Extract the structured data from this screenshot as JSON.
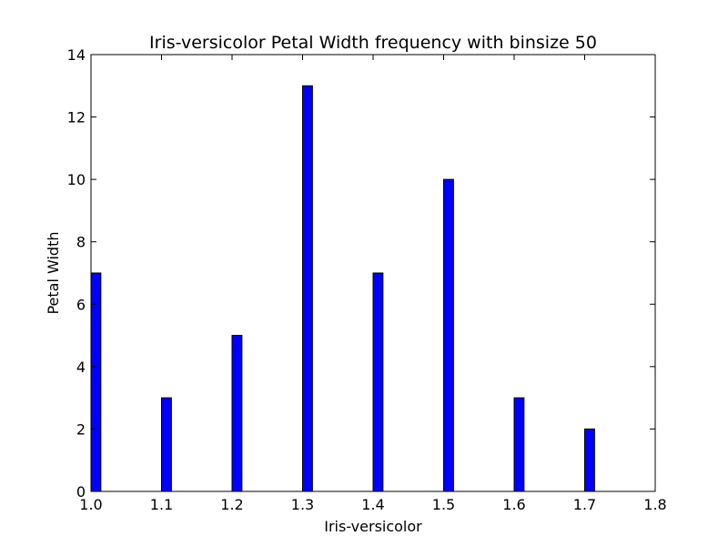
{
  "chart_data": {
    "type": "bar",
    "title": "Iris-versicolor Petal Width frequency with binsize 50",
    "xlabel": "Iris-versicolor",
    "ylabel": "Petal Width",
    "xlim": [
      1.0,
      1.8
    ],
    "ylim": [
      0,
      14
    ],
    "xticks": [
      "1.0",
      "1.1",
      "1.2",
      "1.3",
      "1.4",
      "1.5",
      "1.6",
      "1.7",
      "1.8"
    ],
    "yticks": [
      "0",
      "2",
      "4",
      "6",
      "8",
      "10",
      "12",
      "14"
    ],
    "bin_width": 0.014,
    "bins": [
      {
        "x": 1.0,
        "value": 7
      },
      {
        "x": 1.1,
        "value": 3
      },
      {
        "x": 1.2,
        "value": 5
      },
      {
        "x": 1.3,
        "value": 13
      },
      {
        "x": 1.4,
        "value": 7
      },
      {
        "x": 1.5,
        "value": 10
      },
      {
        "x": 1.6,
        "value": 3
      },
      {
        "x": 1.7,
        "value": 2
      }
    ],
    "bar_color": "#0000ff",
    "grid": false,
    "legend": "none"
  }
}
